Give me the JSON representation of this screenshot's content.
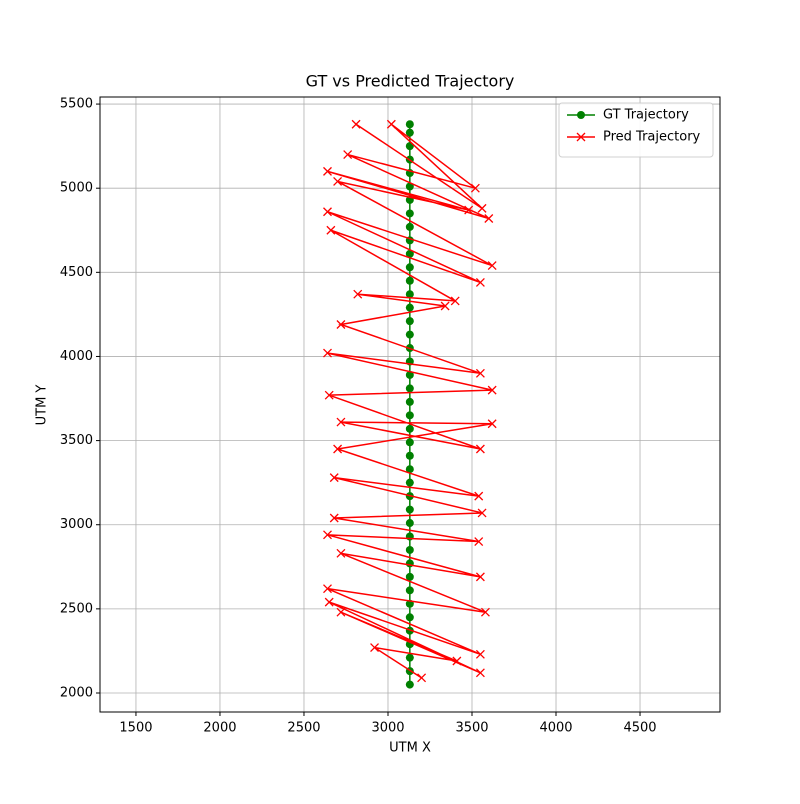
{
  "chart_data": {
    "type": "line",
    "title": "GT vs Predicted Trajectory",
    "x_label": "UTM X",
    "y_label": "UTM Y",
    "xlim": [
      1286,
      4976
    ],
    "ylim": [
      1887,
      5542
    ],
    "xticks": [
      1500,
      2000,
      2500,
      3000,
      3500,
      4000,
      4500
    ],
    "yticks": [
      2000,
      2500,
      3000,
      3500,
      4000,
      4500,
      5000,
      5500
    ],
    "grid": true,
    "legend": "upper right",
    "series": [
      {
        "name": "GT Trajectory",
        "color": "#008000",
        "marker": "o",
        "x": [
          3130,
          3130,
          3130,
          3130,
          3130,
          3130,
          3130,
          3130,
          3130,
          3130,
          3130,
          3130,
          3130,
          3130,
          3130,
          3130,
          3130,
          3130,
          3130,
          3130,
          3130,
          3130,
          3130,
          3130,
          3130,
          3130,
          3130,
          3130,
          3130,
          3130,
          3130,
          3130,
          3130,
          3130,
          3130,
          3130,
          3130,
          3130,
          3130,
          3130,
          3130,
          3130,
          3130
        ],
        "values": [
          2050,
          2130,
          2210,
          2290,
          2370,
          2450,
          2530,
          2610,
          2690,
          2770,
          2850,
          2930,
          3010,
          3090,
          3170,
          3250,
          3330,
          3410,
          3490,
          3570,
          3650,
          3730,
          3810,
          3890,
          3970,
          4050,
          4130,
          4210,
          4290,
          4370,
          4450,
          4530,
          4610,
          4690,
          4770,
          4850,
          4930,
          5010,
          5090,
          5170,
          5250,
          5330,
          5380
        ]
      },
      {
        "name": "Pred Trajectory",
        "color": "#ff0000",
        "marker": "x",
        "x": [
          2810,
          3560,
          3020,
          3520,
          2760,
          3600,
          2640,
          3480,
          2700,
          3620,
          2640,
          3550,
          2660,
          3400,
          2820,
          3340,
          2720,
          3550,
          2640,
          3620,
          2650,
          3550,
          2720,
          3620,
          2700,
          3540,
          2680,
          3560,
          2680,
          3540,
          2640,
          3550,
          2720,
          3580,
          2640,
          3550,
          2650,
          3550,
          2720,
          3410,
          2920,
          3200
        ],
        "values": [
          5380,
          4880,
          5380,
          5000,
          5200,
          4820,
          5100,
          4870,
          5040,
          4540,
          4860,
          4440,
          4750,
          4330,
          4370,
          4300,
          4190,
          3900,
          4020,
          3800,
          3770,
          3450,
          3610,
          3600,
          3450,
          3170,
          3280,
          3070,
          3040,
          2900,
          2940,
          2690,
          2830,
          2480,
          2620,
          2230,
          2540,
          2120,
          2480,
          2190,
          2270,
          2090
        ]
      }
    ]
  }
}
